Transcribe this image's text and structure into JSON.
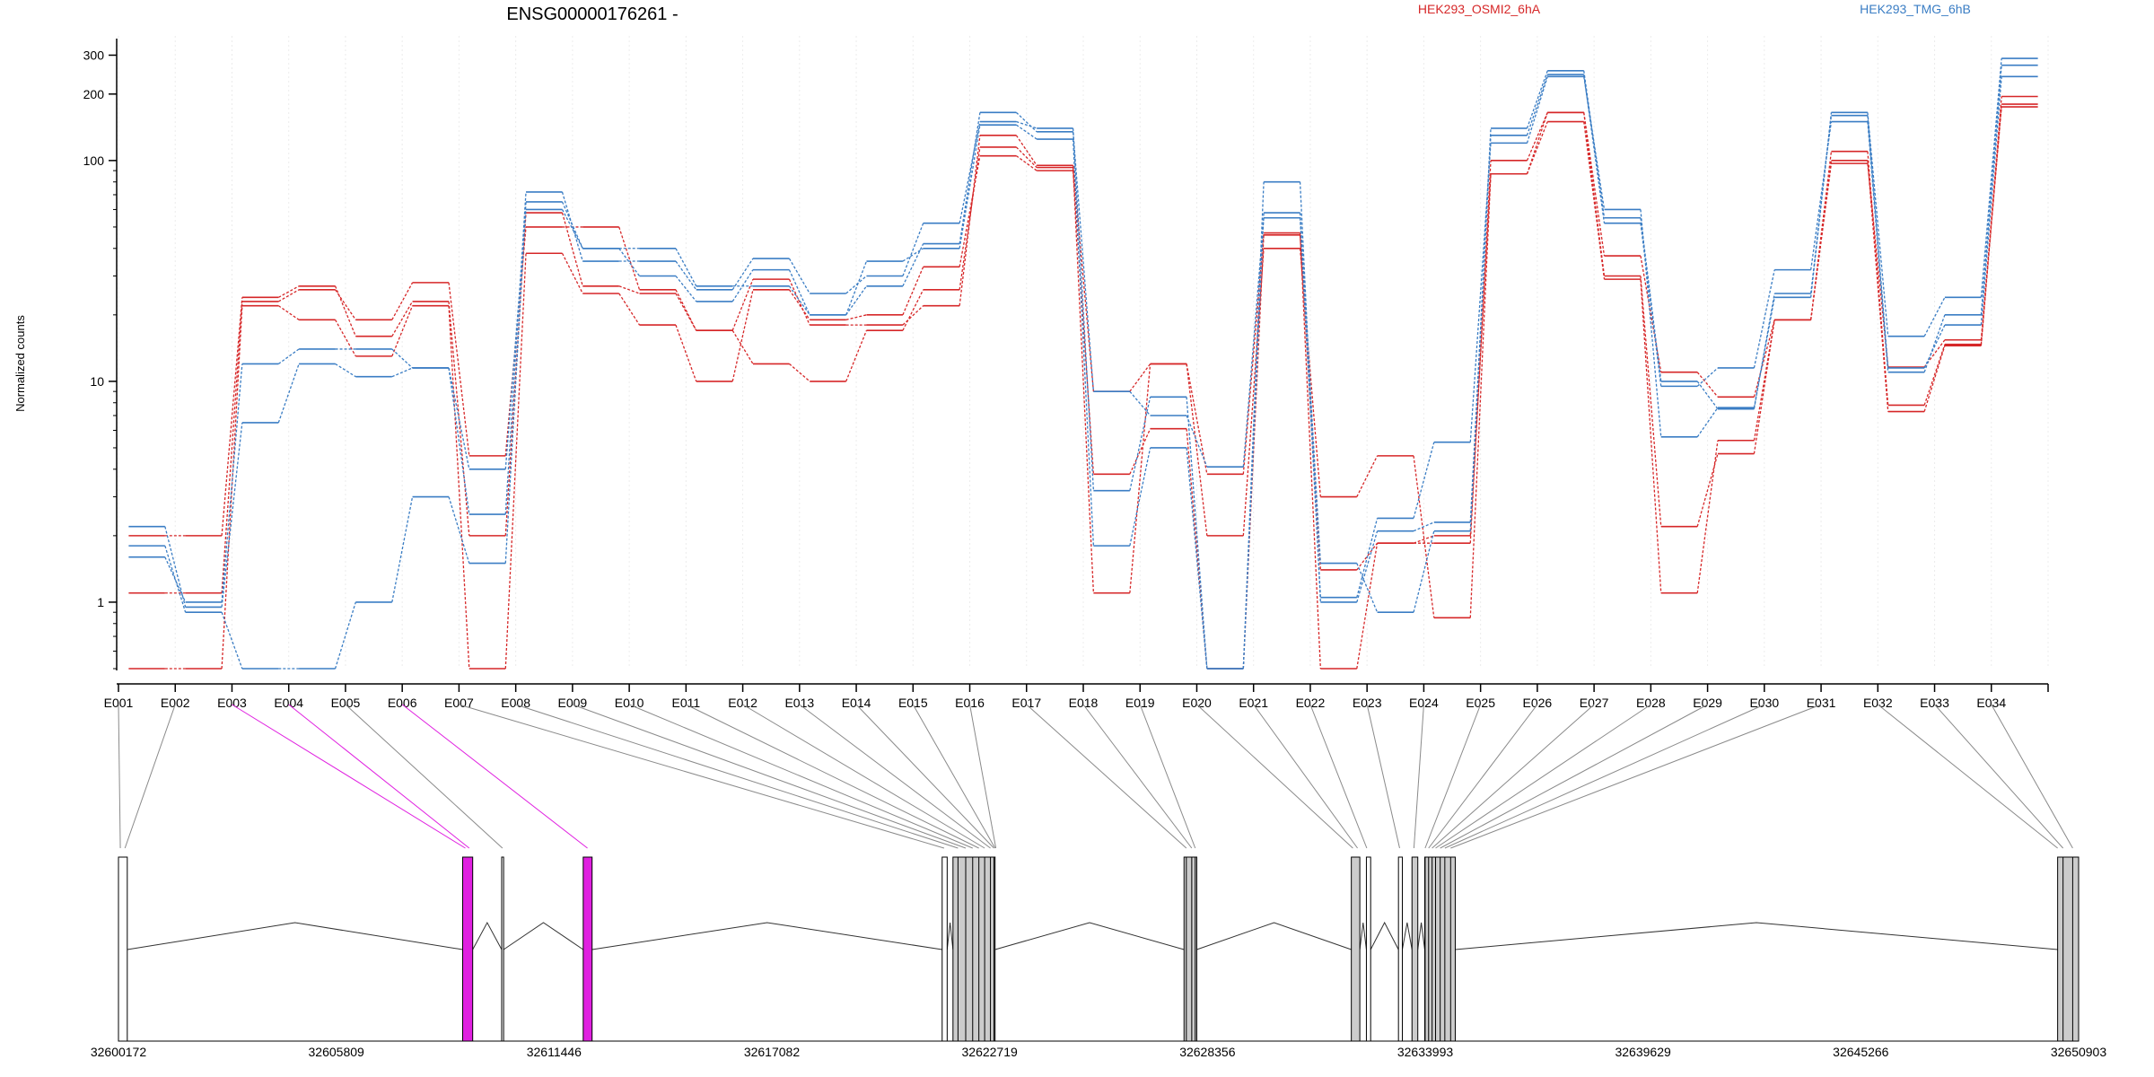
{
  "chart_data": {
    "type": "line",
    "title": "ENSG00000176261 -",
    "xlabel": "",
    "ylabel": "Normalized counts",
    "y_scale": "log",
    "ylim": [
      0.5,
      350
    ],
    "y_ticks": [
      1,
      10,
      100,
      200,
      300
    ],
    "legend": [
      {
        "name": "HEK293_OSMI2_6hA",
        "color": "#d62728"
      },
      {
        "name": "HEK293_TMG_6hB",
        "color": "#3a7dc4"
      }
    ],
    "legend_placement": "top-right",
    "colors": {
      "osmi": "#d62728",
      "tmg": "#3a7dc4",
      "highlight": "#e020e0",
      "exon_fill": "#cccccc"
    },
    "categories": [
      "E001",
      "E002",
      "E003",
      "E004",
      "E005",
      "E006",
      "E007",
      "E008",
      "E009",
      "E010",
      "E011",
      "E012",
      "E013",
      "E014",
      "E015",
      "E016",
      "E017",
      "E018",
      "E019",
      "E020",
      "E021",
      "E022",
      "E023",
      "E024",
      "E025",
      "E026",
      "E027",
      "E028",
      "E029",
      "E030",
      "E031",
      "E032",
      "E033",
      "E034"
    ],
    "series": [
      {
        "group": "HEK293_OSMI2_6hA",
        "values": [
          1.1,
          1.1,
          23,
          26,
          19,
          28,
          4.6,
          50,
          50,
          26,
          17,
          12,
          10,
          17,
          26,
          115,
          93,
          1.1,
          12,
          2,
          40,
          3,
          4.6,
          0.85,
          87,
          150,
          29,
          1.1,
          5.4,
          19,
          100,
          7.3,
          14.5,
          180
        ]
      },
      {
        "group": "HEK293_OSMI2_6hA",
        "values": [
          2,
          2,
          24,
          27,
          16,
          23,
          2,
          58,
          27,
          25,
          17,
          29,
          18,
          18,
          22,
          130,
          95,
          9,
          12,
          3.8,
          47,
          0.5,
          1.85,
          1.85,
          100,
          165,
          37,
          11,
          8.5,
          19,
          110,
          7.8,
          14.7,
          195
        ]
      },
      {
        "group": "HEK293_OSMI2_6hA",
        "values": [
          0.5,
          0.5,
          22,
          19,
          13,
          22,
          0.5,
          38,
          25,
          18,
          10,
          26,
          19,
          20,
          33,
          105,
          90,
          3.8,
          6.1,
          0.5,
          46,
          1.4,
          1.85,
          2,
          87,
          165,
          30,
          2.2,
          4.7,
          19,
          97,
          11.6,
          15.4,
          175
        ]
      },
      {
        "group": "HEK293_TMG_6hB",
        "values": [
          2.2,
          0.95,
          6.5,
          12,
          10.5,
          11.5,
          4,
          60,
          40,
          40,
          27,
          27,
          20,
          27,
          42,
          165,
          135,
          9,
          7,
          4.1,
          55,
          1.05,
          2.4,
          5.3,
          120,
          240,
          60,
          5.6,
          7.6,
          24,
          165,
          16,
          24,
          290
        ]
      },
      {
        "group": "HEK293_TMG_6hB",
        "values": [
          1.8,
          0.9,
          0.5,
          0.5,
          1,
          3,
          1.5,
          65,
          40,
          30,
          23,
          32,
          20,
          35,
          40,
          145,
          125,
          1.8,
          5,
          0.5,
          58,
          1.5,
          0.9,
          2.1,
          140,
          255,
          55,
          10,
          7.5,
          25,
          160,
          11.5,
          18,
          240
        ]
      },
      {
        "group": "HEK293_TMG_6hB",
        "values": [
          1.6,
          1,
          12,
          14,
          14,
          11.5,
          2.5,
          72,
          35,
          35,
          26,
          36,
          25,
          30,
          52,
          150,
          140,
          3.2,
          8.5,
          0.5,
          80,
          1,
          2.1,
          2.3,
          130,
          245,
          52,
          9.5,
          11.5,
          32,
          150,
          11,
          20,
          270
        ]
      }
    ],
    "genomic_ticks": [
      "32600172",
      "32605809",
      "32611446",
      "32617082",
      "32622719",
      "32628356",
      "32633993",
      "32639629",
      "32645266",
      "32650903"
    ],
    "gene_model": {
      "start": 32600172,
      "end": 32650903,
      "exons": [
        {
          "start": 32600172,
          "end": 32600400,
          "fill": "white"
        },
        {
          "start": 32609080,
          "end": 32609340,
          "fill": "highlight"
        },
        {
          "start": 32610090,
          "end": 32610140,
          "fill": "white"
        },
        {
          "start": 32612200,
          "end": 32612430,
          "fill": "highlight"
        },
        {
          "start": 32621490,
          "end": 32621620,
          "fill": "white"
        },
        {
          "start": 32621770,
          "end": 32622860,
          "fill": "grey"
        },
        {
          "start": 32627750,
          "end": 32628080,
          "fill": "grey"
        },
        {
          "start": 32632080,
          "end": 32632300,
          "fill": "grey"
        },
        {
          "start": 32632470,
          "end": 32632580,
          "fill": "white"
        },
        {
          "start": 32633300,
          "end": 32633400,
          "fill": "white"
        },
        {
          "start": 32633650,
          "end": 32633800,
          "fill": "grey"
        },
        {
          "start": 32633980,
          "end": 32634770,
          "fill": "grey"
        },
        {
          "start": 32650360,
          "end": 32650903,
          "fill": "grey"
        }
      ],
      "exon_targets": [
        32600220,
        32600340,
        32609150,
        32609250,
        32610110,
        32612310,
        32621540,
        32621900,
        32622100,
        32622280,
        32622440,
        32622590,
        32622740,
        32622830,
        32622860,
        32622880,
        32627810,
        32627950,
        32628040,
        32632120,
        32632240,
        32632480,
        32633330,
        32633700,
        32633990,
        32634080,
        32634170,
        32634260,
        32634380,
        32634500,
        32634650,
        32650360,
        32650500,
        32650750
      ],
      "highlighted_exons": [
        "E003",
        "E004",
        "E006"
      ],
      "introns": [
        {
          "from": 32600400,
          "to": 32609080
        },
        {
          "from": 32609340,
          "to": 32610090
        },
        {
          "from": 32610140,
          "to": 32612200
        },
        {
          "from": 32612430,
          "to": 32621490
        },
        {
          "from": 32621620,
          "to": 32621770
        },
        {
          "from": 32622860,
          "to": 32627750
        },
        {
          "from": 32628080,
          "to": 32632080
        },
        {
          "from": 32632300,
          "to": 32632470
        },
        {
          "from": 32632580,
          "to": 32633300
        },
        {
          "from": 32633400,
          "to": 32633650
        },
        {
          "from": 32633800,
          "to": 32633980
        },
        {
          "from": 32634770,
          "to": 32650360
        }
      ]
    }
  }
}
